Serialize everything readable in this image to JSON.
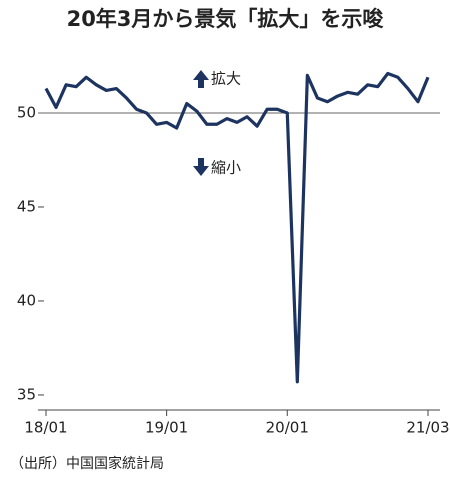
{
  "chart_data": {
    "type": "line",
    "title": "20年3月から景気「拡大」を示唆",
    "source": "（出所）中国国家統計局",
    "annotations": [
      "拡大",
      "縮小"
    ],
    "categories": [
      "18/01",
      null,
      null,
      null,
      null,
      null,
      null,
      null,
      null,
      null,
      null,
      null,
      "19/01",
      null,
      null,
      null,
      null,
      null,
      null,
      null,
      null,
      null,
      null,
      null,
      "20/01",
      null,
      null,
      null,
      null,
      null,
      null,
      null,
      null,
      null,
      null,
      null,
      null,
      null,
      "21/03"
    ],
    "series": [
      {
        "color": "#1d3461",
        "values": [
          51.3,
          50.3,
          51.5,
          51.4,
          51.9,
          51.5,
          51.2,
          51.3,
          50.8,
          50.2,
          50.0,
          49.4,
          49.5,
          49.2,
          50.5,
          50.1,
          49.4,
          49.4,
          49.7,
          49.5,
          49.8,
          49.3,
          50.2,
          50.2,
          50.0,
          35.7,
          52.0,
          50.8,
          50.6,
          50.9,
          51.1,
          51.0,
          51.5,
          51.4,
          52.1,
          51.9,
          51.3,
          50.6,
          51.9
        ]
      }
    ],
    "ylim": [
      34.2,
      54
    ],
    "yticks": [
      35,
      40,
      45,
      50
    ],
    "reference_line": 50
  }
}
